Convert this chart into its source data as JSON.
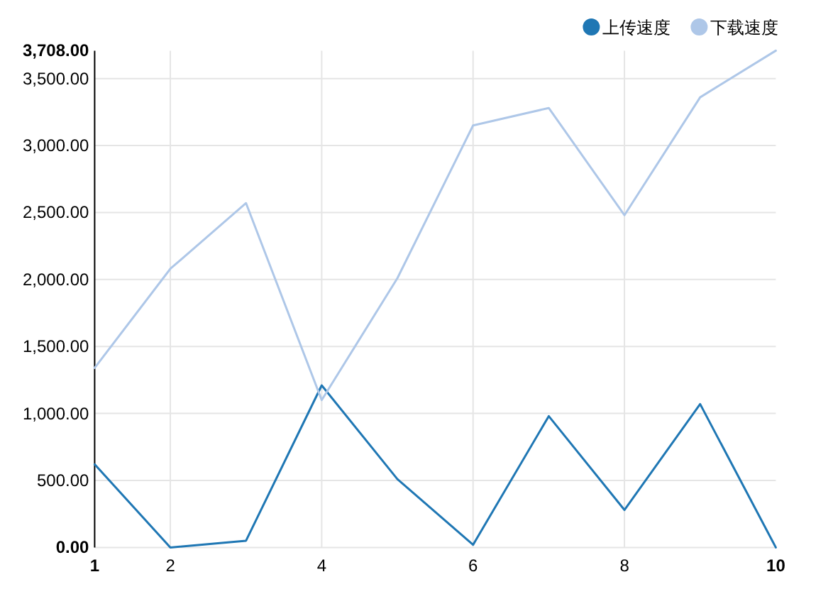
{
  "chart_data": {
    "type": "line",
    "x": [
      1,
      2,
      3,
      4,
      5,
      6,
      7,
      8,
      9,
      10
    ],
    "series": [
      {
        "name": "上传速度",
        "color": "#1f77b4",
        "values": [
          620,
          0,
          50,
          1210,
          510,
          20,
          980,
          280,
          1070,
          0
        ]
      },
      {
        "name": "下载速度",
        "color": "#aec7e8",
        "values": [
          1340,
          2080,
          2570,
          1100,
          2010,
          3150,
          3280,
          2480,
          3360,
          3708
        ]
      }
    ],
    "xlim": [
      1,
      10
    ],
    "ylim": [
      0,
      3708
    ],
    "xticks": [
      1,
      2,
      4,
      6,
      8,
      10
    ],
    "yticks": [
      {
        "value": 0,
        "label": "0.00"
      },
      {
        "value": 500,
        "label": "500.00"
      },
      {
        "value": 1000,
        "label": "1,000.00"
      },
      {
        "value": 1500,
        "label": "1,500.00"
      },
      {
        "value": 2000,
        "label": "2,000.00"
      },
      {
        "value": 2500,
        "label": "2,500.00"
      },
      {
        "value": 3000,
        "label": "3,000.00"
      },
      {
        "value": 3500,
        "label": "3,500.00"
      },
      {
        "value": 3708,
        "label": "3,708.00"
      }
    ],
    "grid": true,
    "legend": "top right",
    "line_style": "solid"
  }
}
